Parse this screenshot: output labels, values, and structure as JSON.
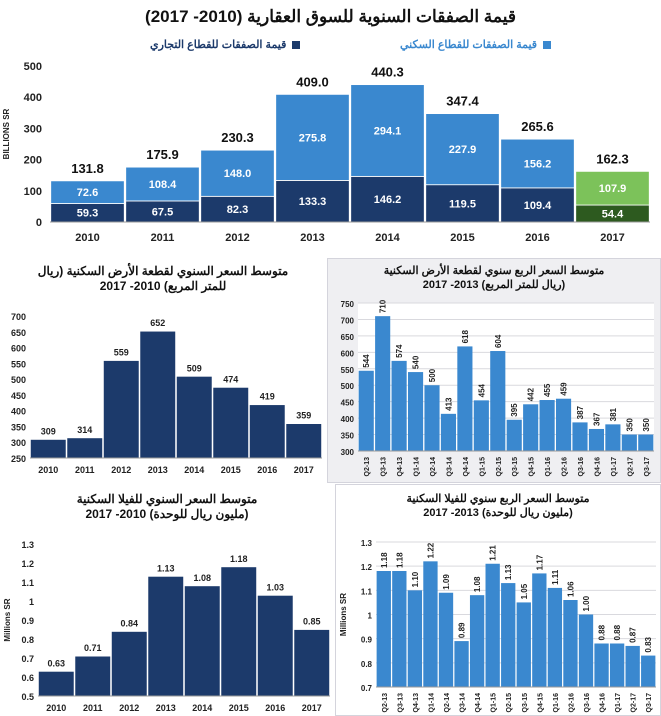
{
  "colors": {
    "commercial": "#1c3a6b",
    "residential": "#3a88cf",
    "commercial_2017": "#2d5a1f",
    "residential_2017": "#7cc25a",
    "bar_navy": "#1c3a6b",
    "bar_blue": "#3a88cf",
    "label_dark": "#111111",
    "label_white": "#ffffff"
  },
  "chart_data": [
    {
      "id": "top",
      "type": "bar",
      "stacked": true,
      "title": "قيمة الصفقات السنوية للسوق العقارية (2010- 2017)",
      "ylabel": "BILLIONS SR",
      "ylim": [
        0,
        500
      ],
      "yticks": [
        0,
        100,
        200,
        300,
        400,
        500
      ],
      "categories": [
        "2010",
        "2011",
        "2012",
        "2013",
        "2014",
        "2015",
        "2016",
        "2017"
      ],
      "series": [
        {
          "name": "قيمة الصفقات للقطاع التجاري",
          "values": [
            59.3,
            67.5,
            82.3,
            133.3,
            146.2,
            119.5,
            109.4,
            54.4
          ]
        },
        {
          "name": "قيمة الصفقات للقطاع السكني",
          "values": [
            72.6,
            108.4,
            148.0,
            275.8,
            294.1,
            227.9,
            156.2,
            107.9
          ]
        }
      ],
      "value_labels_commercial": [
        "59.3",
        "67.5",
        "82.3",
        "133.3",
        "146.2",
        "119.5",
        "109.4",
        "54.4"
      ],
      "value_labels_residential": [
        "72.6",
        "108.4",
        "148.0",
        "275.8",
        "294.1",
        "227.9",
        "156.2",
        "107.9"
      ],
      "totals": [
        131.8,
        175.9,
        230.3,
        409.0,
        440.3,
        347.4,
        265.6,
        162.3
      ],
      "total_labels": [
        "131.8",
        "175.9",
        "230.3",
        "409.0",
        "440.3",
        "347.4",
        "265.6",
        "162.3"
      ]
    },
    {
      "id": "land_annual",
      "type": "bar",
      "title_line1": "متوسط السعر السنوي لقطعة الأرض السكنية (ريال",
      "title_line2": "للمتر المربع) 2010- 2017",
      "ylim": [
        250,
        700
      ],
      "yticks": [
        250,
        300,
        350,
        400,
        450,
        500,
        550,
        600,
        650,
        700
      ],
      "categories": [
        "2010",
        "2011",
        "2012",
        "2013",
        "2014",
        "2015",
        "2016",
        "2017"
      ],
      "values": [
        309,
        314,
        559,
        652,
        509,
        474,
        419,
        359
      ],
      "value_labels": [
        "309",
        "314",
        "559",
        "652",
        "509",
        "474",
        "419",
        "359"
      ]
    },
    {
      "id": "land_quarterly",
      "type": "bar",
      "title_line1": "متوسط السعر الربع سنوي لقطعة الأرض السكنية",
      "title_line2": "(ريال للمتر المربع) 2013- 2017",
      "ylim": [
        300,
        750
      ],
      "yticks": [
        300,
        350,
        400,
        450,
        500,
        550,
        600,
        650,
        700,
        750
      ],
      "categories": [
        "Q2-13",
        "Q3-13",
        "Q4-13",
        "Q1-14",
        "Q2-14",
        "Q3-14",
        "Q4-14",
        "Q1-15",
        "Q2-15",
        "Q3-15",
        "Q4-15",
        "Q1-16",
        "Q2-16",
        "Q3-16",
        "Q4-16",
        "Q1-17",
        "Q2-17",
        "Q3-17"
      ],
      "values": [
        544,
        710,
        574,
        540,
        500,
        413,
        618,
        454,
        604,
        395,
        442,
        455,
        459,
        387,
        367,
        381,
        350,
        350
      ],
      "value_labels": [
        "544",
        "710",
        "574",
        "540",
        "500",
        "413",
        "618",
        "454",
        "604",
        "395",
        "442",
        "455",
        "459",
        "387",
        "367",
        "381",
        "350",
        "350"
      ]
    },
    {
      "id": "villa_annual",
      "type": "bar",
      "title_line1": "متوسط السعر السنوي للفيلا السكنية",
      "title_line2": "(مليون ريال للوحدة) 2010- 2017",
      "ylabel": "Millions SR",
      "ylim": [
        0.5,
        1.3
      ],
      "yticks": [
        "0.5",
        "0.6",
        "0.7",
        "0.8",
        "0.9",
        "1",
        "1.1",
        "1.2",
        "1.3"
      ],
      "categories": [
        "2010",
        "2011",
        "2012",
        "2013",
        "2014",
        "2015",
        "2016",
        "2017"
      ],
      "values": [
        0.63,
        0.71,
        0.84,
        1.13,
        1.08,
        1.18,
        1.03,
        0.85
      ],
      "value_labels": [
        "0.63",
        "0.71",
        "0.84",
        "1.13",
        "1.08",
        "1.18",
        "1.03",
        "0.85"
      ]
    },
    {
      "id": "villa_quarterly",
      "type": "bar",
      "title_line1": "متوسط السعر الربع سنوي للفيلا السكنية",
      "title_line2": "(مليون ريال للوحدة) 2013- 2017",
      "ylabel": "Millions SR",
      "ylim": [
        0.7,
        1.3
      ],
      "yticks": [
        "0.7",
        "0.8",
        "0.9",
        "1",
        "1.1",
        "1.2",
        "1.3"
      ],
      "categories": [
        "Q2-13",
        "Q3-13",
        "Q4-13",
        "Q1-14",
        "Q2-14",
        "Q3-14",
        "Q4-14",
        "Q1-15",
        "Q2-15",
        "Q3-15",
        "Q4-15",
        "Q1-16",
        "Q2-16",
        "Q3-16",
        "Q4-16",
        "Q1-17",
        "Q2-17",
        "Q3-17"
      ],
      "values": [
        1.18,
        1.18,
        1.1,
        1.22,
        1.09,
        0.89,
        1.08,
        1.21,
        1.13,
        1.05,
        1.17,
        1.11,
        1.06,
        1.0,
        0.88,
        0.88,
        0.87,
        0.83
      ],
      "value_labels": [
        "1.18",
        "1.18",
        "1.10",
        "1.22",
        "1.09",
        "0.89",
        "1.08",
        "1.21",
        "1.13",
        "1.05",
        "1.17",
        "1.11",
        "1.06",
        "1.00",
        "0.88",
        "0.88",
        "0.87",
        "0.83"
      ]
    }
  ]
}
